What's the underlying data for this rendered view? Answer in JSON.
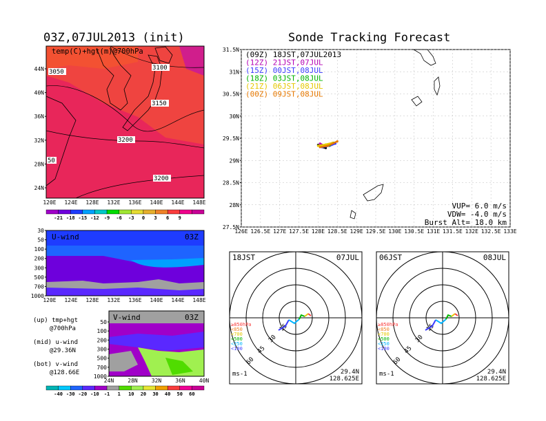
{
  "left_title": "03Z,07JUL2013 (init)",
  "right_title": "Sonde Tracking Forecast",
  "top_map": {
    "label": "temp(C)+hgt(m)@700hPa",
    "contour_labels": [
      "3050",
      "3100",
      "3150",
      "3200",
      "3200",
      "50"
    ],
    "x_ticks": [
      "120E",
      "124E",
      "128E",
      "132E",
      "136E",
      "140E",
      "144E",
      "148E"
    ],
    "y_ticks": [
      "44N",
      "40N",
      "36N",
      "32N",
      "28N",
      "24N"
    ],
    "colorbar_ticks": [
      "-21",
      "-18",
      "-15",
      "-12",
      "-9",
      "-6",
      "-3",
      "0",
      "3",
      "6",
      "9"
    ],
    "colorbar_colors": [
      "#a000c8",
      "#6e00dc",
      "#1e3cff",
      "#00a0ff",
      "#00c8c8",
      "#00dc00",
      "#a0e632",
      "#e6dc32",
      "#e6af2d",
      "#f08228",
      "#fa3c3c",
      "#f0008c",
      "#c80096"
    ]
  },
  "u_panel": {
    "label": "U-wind",
    "time": "03Z",
    "y_ticks": [
      "30",
      "50",
      "100",
      "200",
      "300",
      "500",
      "700",
      "1000"
    ],
    "x_ticks": [
      "120E",
      "124E",
      "128E",
      "132E",
      "136E",
      "140E",
      "144E",
      "148E"
    ]
  },
  "v_panel": {
    "label": "V-wind",
    "time": "03Z",
    "y_ticks": [
      "50",
      "100",
      "200",
      "300",
      "500",
      "700",
      "1000"
    ],
    "x_ticks": [
      "24N",
      "28N",
      "32N",
      "36N",
      "40N"
    ]
  },
  "legend_left": [
    {
      "a": "(up) tmp+hgt",
      "b": "@700hPa"
    },
    {
      "a": "(mid) u-wind",
      "b": "@29.36N"
    },
    {
      "a": "(bot) v-wind",
      "b": "@128.66E"
    }
  ],
  "wind_colorbar": {
    "ticks": [
      "-40",
      "-30",
      "-20",
      "-10",
      "-1",
      "1",
      "10",
      "20",
      "30",
      "40",
      "50",
      "60"
    ],
    "colors": [
      "#00b4b4",
      "#00c8ff",
      "#1e64ff",
      "#5a28ff",
      "#a000c8",
      "#a0a0a0",
      "#50dc00",
      "#a0f050",
      "#e6e632",
      "#f0a000",
      "#fa3c3c",
      "#f00096",
      "#c80096"
    ]
  },
  "track_map": {
    "x_ticks": [
      "126E",
      "126.5E",
      "127E",
      "127.5E",
      "128E",
      "128.5E",
      "129E",
      "129.5E",
      "130E",
      "130.5E",
      "131E",
      "131.5E",
      "132E",
      "132.5E",
      "133E"
    ],
    "y_ticks": [
      "31.5N",
      "31N",
      "30.5N",
      "30N",
      "29.5N",
      "29N",
      "28.5N",
      "28N",
      "27.5N"
    ],
    "legend": [
      {
        "text": "(09Z) 18JST,07JUL2013",
        "color": "#000000"
      },
      {
        "text": "(12Z) 21JST,07JUL",
        "color": "#b400b4"
      },
      {
        "text": "(15Z) 00JST,08JUL",
        "color": "#3c3cff"
      },
      {
        "text": "(18Z) 03JST,08JUL",
        "color": "#00b400"
      },
      {
        "text": "(21Z) 06JST,08JUL",
        "color": "#e6c800"
      },
      {
        "text": "(00Z) 09JST,08JUL",
        "color": "#e67800"
      }
    ],
    "info": [
      "VUP= 6.0 m/s",
      "VDW= -4.0 m/s",
      "Burst Alt= 18.0 km"
    ]
  },
  "hodo1": {
    "time": "18JST",
    "date": "07JUL",
    "lat": "29.4N",
    "lon": "128.625E",
    "unit": "ms-1",
    "ring_labels": [
      "15",
      "30",
      "45",
      "60"
    ],
    "levels": [
      {
        "t": "≥850hPa",
        "c": "#fa3c3c"
      },
      {
        "t": "<850",
        "c": "#f08228"
      },
      {
        "t": "<700",
        "c": "#e6c800"
      },
      {
        "t": "<500",
        "c": "#00b400"
      },
      {
        "t": "<250",
        "c": "#00b4ff"
      },
      {
        "t": "<100",
        "c": "#3c3cff"
      }
    ]
  },
  "hodo2": {
    "time": "06JST",
    "date": "08JUL",
    "lat": "29.4N",
    "lon": "128.625E",
    "unit": "ms-1",
    "ring_labels": [
      "15",
      "30",
      "45",
      "60"
    ],
    "levels": [
      {
        "t": "≥850hPa",
        "c": "#fa3c3c"
      },
      {
        "t": "<850",
        "c": "#f08228"
      },
      {
        "t": "<700",
        "c": "#e6c800"
      },
      {
        "t": "<500",
        "c": "#00b400"
      },
      {
        "t": "<250",
        "c": "#00b4ff"
      },
      {
        "t": "<100",
        "c": "#3c3cff"
      }
    ]
  },
  "chart_data": {
    "type": "scatter",
    "title": "Sonde Tracking Forecast",
    "x_range": [
      126,
      133
    ],
    "y_range": [
      27.5,
      31.5
    ],
    "series": [
      {
        "name": "(09Z) 18JST,07JUL2013",
        "points": [
          [
            128.0,
            29.35
          ],
          [
            128.1,
            29.3
          ],
          [
            128.2,
            29.28
          ]
        ]
      },
      {
        "name": "(12Z) 21JST,07JUL",
        "points": [
          [
            128.05,
            29.38
          ],
          [
            128.2,
            29.32
          ],
          [
            128.35,
            29.35
          ]
        ]
      },
      {
        "name": "(15Z) 00JST,08JUL",
        "points": [
          [
            128.1,
            29.3
          ],
          [
            128.3,
            29.33
          ],
          [
            128.45,
            29.38
          ]
        ]
      },
      {
        "name": "(18Z) 03JST,08JUL",
        "points": [
          [
            128.12,
            29.32
          ],
          [
            128.3,
            29.34
          ],
          [
            128.4,
            29.4
          ]
        ]
      },
      {
        "name": "(21Z) 06JST,08JUL",
        "points": [
          [
            128.0,
            29.33
          ],
          [
            128.2,
            29.36
          ],
          [
            128.38,
            29.4
          ]
        ]
      },
      {
        "name": "(00Z) 09JST,08JUL",
        "points": [
          [
            128.05,
            29.3
          ],
          [
            128.25,
            29.33
          ],
          [
            128.5,
            29.43
          ]
        ]
      }
    ]
  }
}
